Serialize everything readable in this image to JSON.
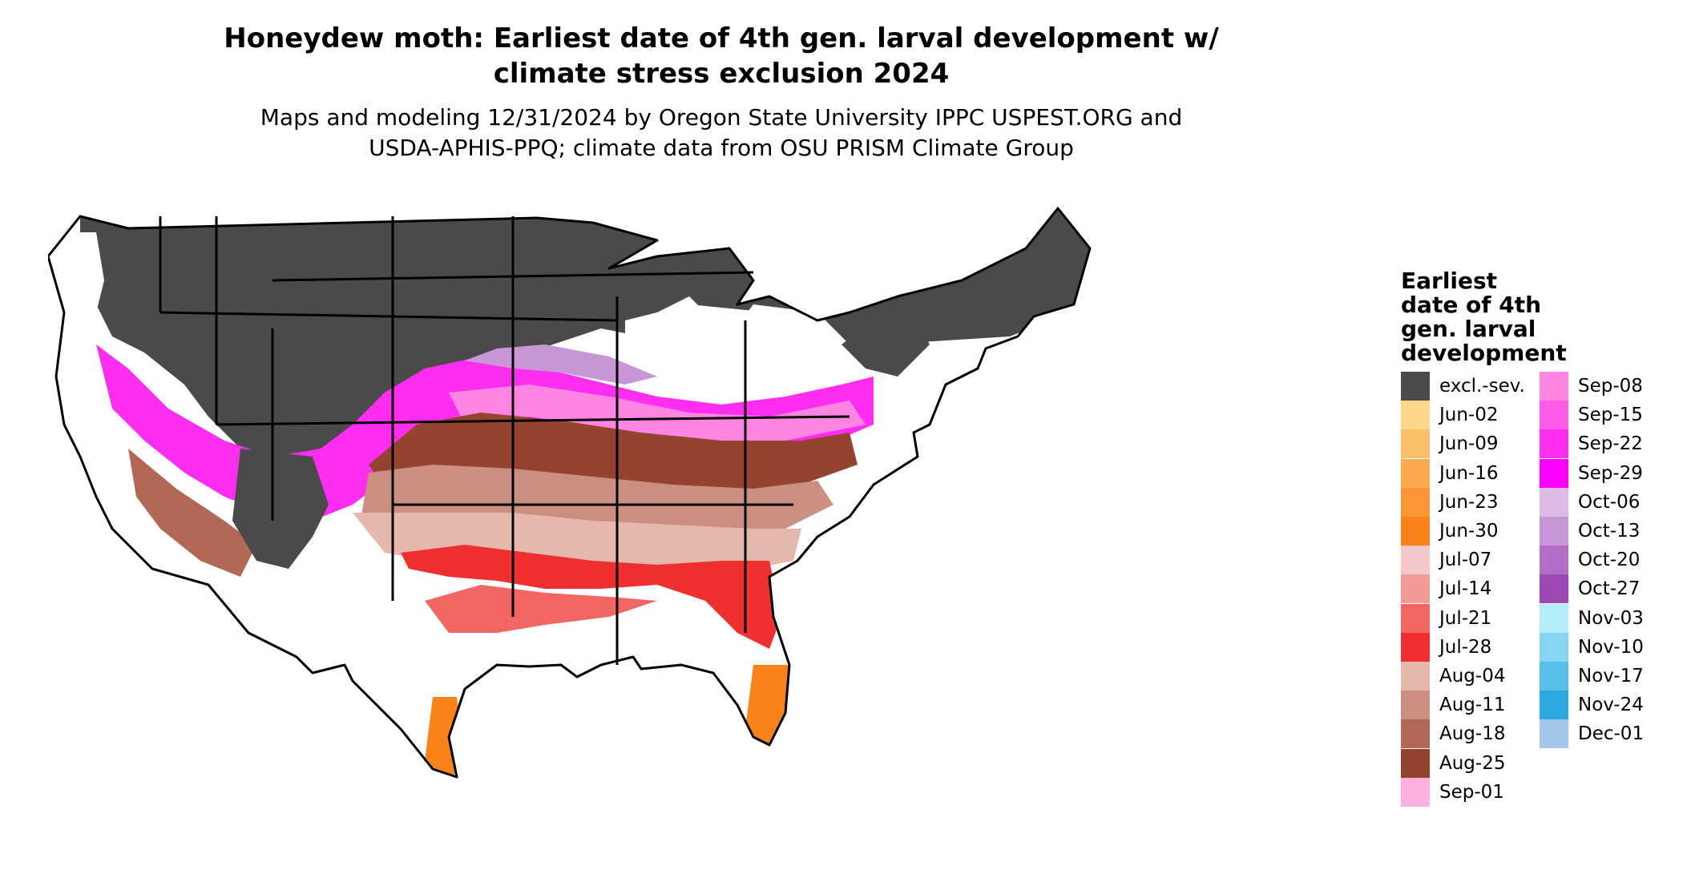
{
  "title": "Honeydew moth: Earliest date of 4th gen. larval development w/ climate stress exclusion 2024",
  "title_lines": [
    "Honeydew moth: Earliest date of 4th gen. larval development w/",
    "climate stress exclusion 2024"
  ],
  "subtitle_lines": [
    "Maps and modeling 12/31/2024 by Oregon State University IPPC USPEST.ORG and",
    "USDA-APHIS-PPQ; climate data from OSU PRISM Climate Group"
  ],
  "legend": {
    "title_lines": [
      "Earliest",
      "date of 4th",
      "gen. larval",
      "development"
    ],
    "items": [
      {
        "label": "excl.-sev.",
        "color": "#4a4a4a"
      },
      {
        "label": "Jun-02",
        "color": "#fdd68b"
      },
      {
        "label": "Jun-09",
        "color": "#fcc06b"
      },
      {
        "label": "Jun-16",
        "color": "#fbaa50"
      },
      {
        "label": "Jun-23",
        "color": "#fa9636"
      },
      {
        "label": "Jun-30",
        "color": "#f98219"
      },
      {
        "label": "Jul-07",
        "color": "#f5c9c9"
      },
      {
        "label": "Jul-14",
        "color": "#f39a98"
      },
      {
        "label": "Jul-21",
        "color": "#f26664"
      },
      {
        "label": "Jul-28",
        "color": "#f03030"
      },
      {
        "label": "Aug-04",
        "color": "#e6b7ac"
      },
      {
        "label": "Aug-11",
        "color": "#cb8f82"
      },
      {
        "label": "Aug-18",
        "color": "#b26855"
      },
      {
        "label": "Aug-25",
        "color": "#94432f"
      },
      {
        "label": "Sep-01",
        "color": "#ffb0dc"
      },
      {
        "label": "Sep-08",
        "color": "#ff85e3"
      },
      {
        "label": "Sep-15",
        "color": "#ff5ae8"
      },
      {
        "label": "Sep-22",
        "color": "#ff2df0"
      },
      {
        "label": "Sep-29",
        "color": "#ff00ff"
      },
      {
        "label": "Oct-06",
        "color": "#dcbbe6"
      },
      {
        "label": "Oct-13",
        "color": "#c895d6"
      },
      {
        "label": "Oct-20",
        "color": "#b46dc7"
      },
      {
        "label": "Oct-27",
        "color": "#9e47b7"
      },
      {
        "label": "Nov-03",
        "color": "#b5ecfc"
      },
      {
        "label": "Nov-10",
        "color": "#86d6f2"
      },
      {
        "label": "Nov-17",
        "color": "#58c0e8"
      },
      {
        "label": "Nov-24",
        "color": "#29a9de"
      },
      {
        "label": "Dec-01",
        "color": "#a2c6ea"
      }
    ]
  }
}
